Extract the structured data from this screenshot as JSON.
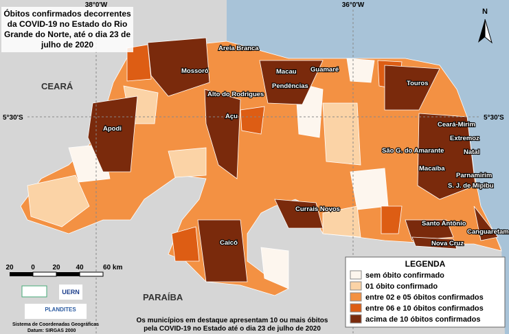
{
  "title_lines": [
    "Óbitos confirmados decorrentes",
    "da COVID-19 no Estado do Rio",
    "Grande do Norte, até o dia 23 de",
    "julho de 2020"
  ],
  "graticule": {
    "lon_labels": [
      "38°0'W",
      "36°0'W"
    ],
    "lat_labels": [
      "5°30'S",
      "5°30'S"
    ]
  },
  "north": "N",
  "neighbors": [
    "CEARÁ",
    "PARAÍBA"
  ],
  "cities": [
    "Areia Branca",
    "Mossoró",
    "Macau",
    "Guamaré",
    "Pendências",
    "Touros",
    "Alto do Rodrigues",
    "Açu",
    "Apodi",
    "Ceará-Mirim",
    "Extremoz",
    "Natal",
    "São G. do Amarante",
    "Macaíba",
    "Parnamirim",
    "S. J. de Mipibu",
    "Currais Novos",
    "Santo Antônio",
    "Canguaretama",
    "Nova Cruz",
    "Caicó"
  ],
  "scale": {
    "labels": [
      "20",
      "0",
      "20",
      "40",
      "60 km"
    ]
  },
  "legend": {
    "title": "LEGENDA",
    "items": [
      {
        "label": "sem óbito confirmado",
        "color": "#fdf6ee"
      },
      {
        "label": "01 óbito confirmado",
        "color": "#fbd3a6"
      },
      {
        "label": "entre 02 e 05 óbitos confirmados",
        "color": "#f39143"
      },
      {
        "label": "entre 06 e 10 óbitos confirmados",
        "color": "#dd5d14"
      },
      {
        "label": "acima de 10 óbitos confirmados",
        "color": "#7a2a0c"
      }
    ]
  },
  "logos": [
    "UERN",
    "PLANDITES"
  ],
  "footer": [
    "Sistema de Coordenadas Geográficas",
    "Datum: SIRGAS 2000"
  ],
  "note": [
    "Os municípios em destaque apresentam 10 ou mais óbitos",
    "pela COVID-19 no Estado até o dia 23 de julho de 2020"
  ]
}
